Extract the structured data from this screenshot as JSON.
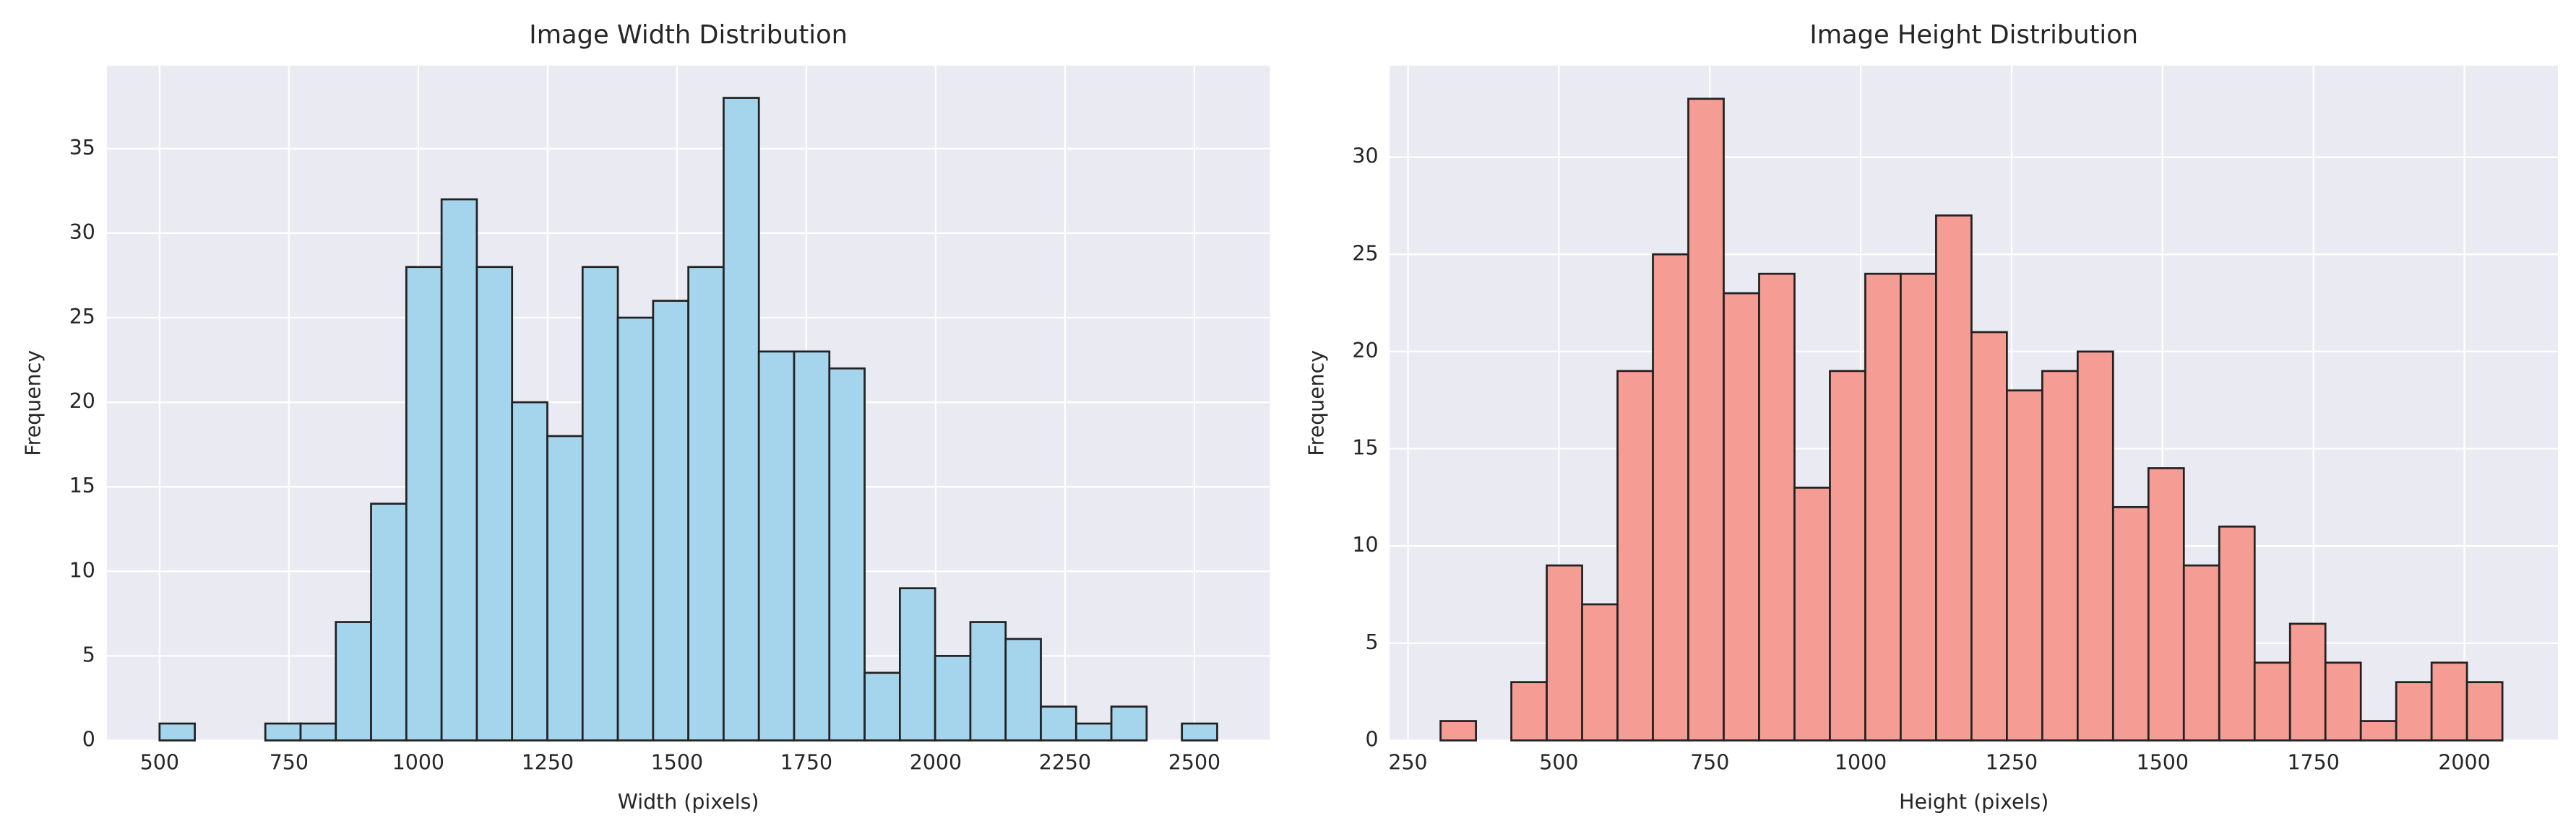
{
  "chart_data": [
    {
      "type": "histogram",
      "title": "Image Width Distribution",
      "xlabel": "Width (pixels)",
      "ylabel": "Frequency",
      "bins": [
        500,
        568.13,
        636.27,
        704.4,
        772.53,
        840.67,
        908.8,
        976.93,
        1045.07,
        1113.2,
        1181.33,
        1249.47,
        1317.6,
        1385.73,
        1453.87,
        1522,
        1590.13,
        1658.27,
        1726.4,
        1794.53,
        1862.67,
        1930.8,
        1998.93,
        2067.07,
        2135.2,
        2203.33,
        2271.47,
        2339.6,
        2407.73,
        2475.87,
        2544
      ],
      "values": [
        1,
        0,
        0,
        1,
        1,
        7,
        14,
        28,
        32,
        28,
        20,
        18,
        28,
        25,
        26,
        28,
        38,
        23,
        23,
        22,
        4,
        9,
        5,
        7,
        6,
        2,
        1,
        2,
        0,
        1
      ],
      "color": "#a5d5ec",
      "edgecolor": "#222222",
      "xlim": [
        398,
        2646
      ],
      "ylim": [
        0,
        39.9
      ],
      "xticks": [
        500,
        750,
        1000,
        1250,
        1500,
        1750,
        2000,
        2250,
        2500
      ],
      "yticks": [
        0,
        5,
        10,
        15,
        20,
        25,
        30,
        35
      ],
      "grid": true
    },
    {
      "type": "histogram",
      "title": "Image Height Distribution",
      "xlabel": "Height (pixels)",
      "ylabel": "Frequency",
      "bins": [
        304,
        362.63,
        421.27,
        479.9,
        538.53,
        597.17,
        655.8,
        714.43,
        773.07,
        831.7,
        890.33,
        948.97,
        1007.6,
        1066.23,
        1124.87,
        1183.5,
        1242.13,
        1300.77,
        1359.4,
        1418.03,
        1476.67,
        1535.3,
        1593.93,
        1652.57,
        1711.2,
        1769.83,
        1828.47,
        1887.1,
        1945.73,
        2004.37,
        2063
      ],
      "values": [
        1,
        0,
        3,
        9,
        7,
        19,
        25,
        33,
        23,
        24,
        13,
        19,
        24,
        24,
        27,
        21,
        18,
        19,
        20,
        12,
        14,
        9,
        11,
        4,
        6,
        4,
        1,
        3,
        4,
        3
      ],
      "color": "#f59d95",
      "edgecolor": "#222222",
      "xlim": [
        220,
        2155
      ],
      "ylim": [
        0,
        34.7
      ],
      "xticks": [
        250,
        500,
        750,
        1000,
        1250,
        1500,
        1750,
        2000
      ],
      "yticks": [
        0,
        5,
        10,
        15,
        20,
        25,
        30
      ],
      "grid": true
    }
  ]
}
